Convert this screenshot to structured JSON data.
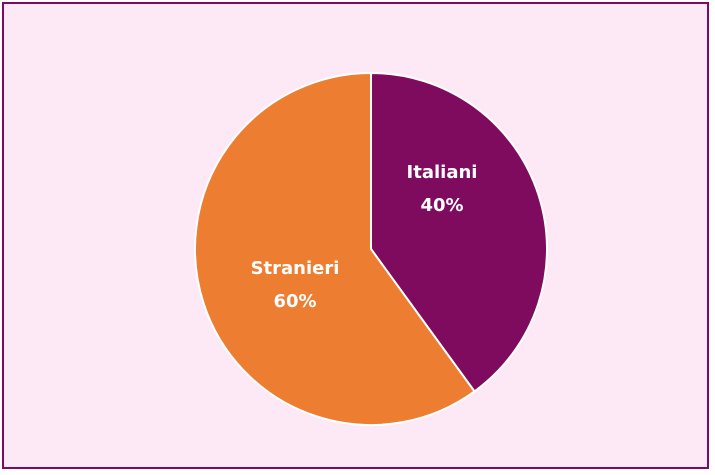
{
  "chart_data": {
    "type": "pie",
    "categories": [
      "Italiani",
      "Stranieri"
    ],
    "values": [
      40,
      60
    ],
    "labels": [
      "40%",
      "60%"
    ],
    "colors": [
      "#7f0b5f",
      "#ed7d31"
    ],
    "title": "",
    "legend": "none"
  },
  "colors": {
    "background": "#fde8f5",
    "border": "#7f0b5f",
    "slice_separator": "#ffffff"
  }
}
